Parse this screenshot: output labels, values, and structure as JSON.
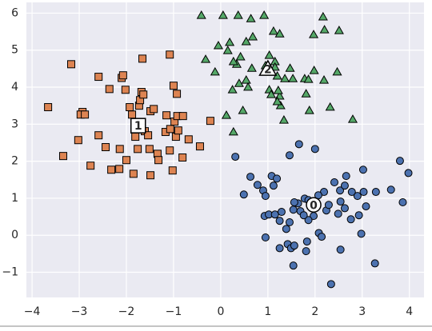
{
  "chart_data": {
    "type": "scatter",
    "xlim": [
      -4.12,
      4.31
    ],
    "ylim": [
      -1.68,
      6.29
    ],
    "xticks": [
      {
        "value": -4,
        "label": "−4"
      },
      {
        "value": -3,
        "label": "−3"
      },
      {
        "value": -2,
        "label": "−2"
      },
      {
        "value": -1,
        "label": "−1"
      },
      0,
      1,
      2,
      3,
      4
    ],
    "yticks": [
      {
        "value": -1,
        "label": "−1"
      },
      0,
      1,
      2,
      3,
      4,
      5,
      6
    ],
    "grid": true,
    "series": [
      {
        "color": "#4c72b0",
        "marker": "circle",
        "x": [
          0.31,
          1.66,
          2.0,
          1.46,
          0.49,
          0.63,
          0.78,
          1.08,
          1.19,
          1.12,
          0.9,
          0.95,
          0.93,
          1.02,
          1.15,
          1.29,
          1.25,
          1.39,
          1.42,
          1.25,
          1.49,
          1.56,
          1.83,
          1.81,
          1.54,
          2.08,
          2.14,
          2.24,
          2.19,
          2.29,
          2.41,
          2.53,
          2.66,
          2.78,
          2.9,
          2.63,
          2.54,
          2.63,
          2.76,
          2.93,
          3.02,
          3.03,
          3.08,
          2.98,
          3.27,
          3.61,
          3.8,
          3.86,
          3.98,
          2.34,
          2.54,
          2.49,
          1.97,
          1.64,
          1.78,
          1.86,
          1.54,
          1.56,
          1.69,
          1.86,
          0.95,
          2.07,
          1.76,
          3.29,
          1.46
        ],
        "y": [
          2.12,
          2.46,
          2.33,
          2.16,
          1.1,
          1.58,
          1.36,
          1.6,
          1.53,
          1.34,
          1.21,
          1.06,
          0.52,
          0.56,
          0.56,
          0.63,
          0.39,
          0.17,
          -0.24,
          -0.35,
          -0.35,
          -0.28,
          -0.17,
          -0.43,
          -0.82,
          0.06,
          -0.04,
          0.67,
          1.17,
          0.82,
          1.43,
          1.21,
          1.6,
          1.17,
          1.06,
          1.34,
          0.91,
          0.73,
          0.43,
          0.54,
          1.77,
          1.17,
          0.78,
          0.04,
          -0.76,
          1.23,
          2.01,
          0.89,
          1.68,
          -1.32,
          -0.39,
          0.58,
          0.52,
          0.86,
          0.99,
          0.95,
          0.69,
          0.89,
          0.65,
          0.41,
          -0.06,
          1.08,
          0.54,
          1.17,
          0.35
        ]
      },
      {
        "color": "#dd8452",
        "marker": "square",
        "x": [
          -3.66,
          -3.17,
          -3.34,
          -3.02,
          -2.93,
          -2.97,
          -2.88,
          -2.59,
          -2.76,
          -2.59,
          -2.44,
          -2.36,
          -2.32,
          -2.15,
          -2.14,
          -2.1,
          -2.07,
          -2.0,
          -2.02,
          -1.93,
          -1.88,
          -1.85,
          -1.76,
          -1.81,
          -1.73,
          -1.71,
          -1.66,
          -1.68,
          -1.64,
          -1.61,
          -1.51,
          -1.54,
          -1.49,
          -1.49,
          -1.42,
          -1.34,
          -1.32,
          -1.15,
          -1.17,
          -1.08,
          -1.08,
          -1.07,
          -1.02,
          -1.0,
          -0.98,
          -0.93,
          -0.92,
          -0.95,
          -0.9,
          -0.8,
          -0.81,
          -0.68,
          -0.44,
          -0.22
        ],
        "y": [
          3.46,
          4.62,
          2.14,
          2.57,
          3.33,
          3.26,
          3.26,
          4.28,
          1.88,
          2.7,
          2.38,
          3.95,
          1.77,
          1.79,
          2.33,
          4.25,
          4.32,
          2.03,
          3.93,
          3.46,
          3.26,
          1.66,
          2.33,
          2.66,
          3.5,
          3.65,
          4.77,
          3.87,
          3.8,
          2.81,
          2.33,
          2.7,
          1.62,
          3.35,
          3.41,
          2.2,
          2.03,
          3.24,
          2.79,
          4.88,
          2.29,
          2.87,
          1.75,
          4.04,
          3.07,
          3.82,
          3.22,
          2.66,
          2.83,
          3.22,
          2.1,
          2.59,
          2.4,
          3.09
        ]
      },
      {
        "color": "#55a868",
        "marker": "triangle",
        "x": [
          -0.41,
          0.05,
          0.37,
          0.64,
          0.92,
          2.17,
          2.2,
          2.51,
          1.97,
          1.12,
          1.25,
          0.68,
          -0.05,
          0.19,
          0.15,
          0.42,
          0.34,
          0.27,
          -0.32,
          -0.12,
          0.54,
          1.03,
          1.15,
          0.95,
          1.2,
          1.47,
          1.53,
          1.78,
          1.86,
          2.19,
          1.36,
          0.54,
          0.66,
          0.39,
          0.58,
          0.25,
          0.12,
          0.27,
          0.47,
          1.03,
          1.07,
          1.25,
          1.27,
          1.2,
          1.34,
          1.22,
          1.81,
          1.88,
          2.32,
          2.8,
          2.47,
          1.98,
          1.15
        ],
        "y": [
          5.94,
          5.94,
          5.94,
          5.85,
          5.94,
          5.9,
          5.55,
          5.53,
          5.42,
          5.51,
          5.44,
          5.36,
          5.12,
          5.21,
          4.99,
          4.82,
          4.62,
          4.69,
          4.75,
          4.41,
          5.23,
          4.86,
          4.69,
          4.58,
          4.3,
          4.51,
          4.23,
          4.23,
          4.21,
          4.19,
          4.23,
          4.19,
          4.51,
          4.1,
          4.0,
          3.93,
          3.24,
          2.79,
          3.37,
          3.93,
          3.8,
          3.76,
          3.5,
          3.61,
          3.11,
          3.91,
          3.82,
          3.37,
          3.46,
          3.13,
          4.41,
          4.45,
          4.54
        ]
      }
    ],
    "centers": {
      "x": [
        1.97,
        -1.75,
        1.0
      ],
      "y": [
        0.82,
        2.96,
        4.49
      ],
      "labels": [
        "0",
        "1",
        "2"
      ]
    }
  }
}
